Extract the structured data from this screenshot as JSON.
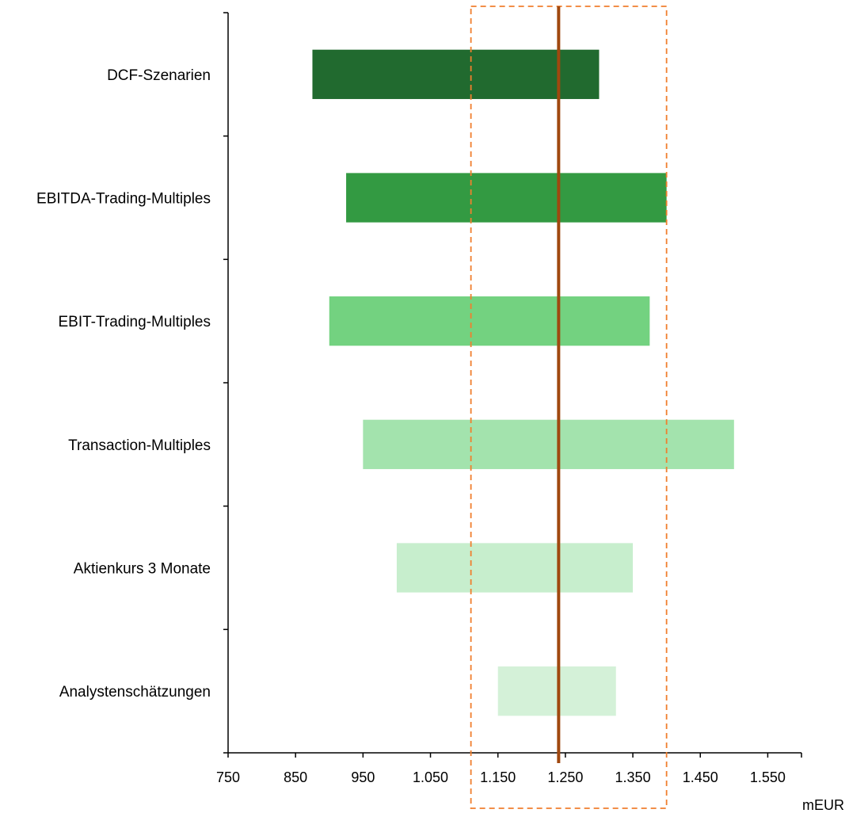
{
  "chart_data": {
    "type": "bar",
    "orientation": "horizontal-floating",
    "categories": [
      "DCF-Szenarien",
      "EBITDA-Trading-Multiples",
      "EBIT-Trading-Multiples",
      "Transaction-Multiples",
      "Aktienkurs 3 Monate",
      "Analystenschätzungen"
    ],
    "ranges": [
      {
        "low": 875,
        "high": 1300
      },
      {
        "low": 925,
        "high": 1400
      },
      {
        "low": 900,
        "high": 1375
      },
      {
        "low": 950,
        "high": 1500
      },
      {
        "low": 1000,
        "high": 1350
      },
      {
        "low": 1150,
        "high": 1325
      }
    ],
    "bar_colors": [
      "#216a2f",
      "#339a42",
      "#73d280",
      "#a3e3ad",
      "#c7eecd",
      "#d4f1d8"
    ],
    "x_ticks": [
      "750",
      "850",
      "950",
      "1.050",
      "1.150",
      "1.250",
      "1.350",
      "1.450",
      "1.550"
    ],
    "x_tick_values": [
      750,
      850,
      950,
      1050,
      1150,
      1250,
      1350,
      1450,
      1550
    ],
    "xlim": [
      750,
      1600
    ],
    "unit_label": "mEUR",
    "reference_line": {
      "value": 1240,
      "color": "#a0480f"
    },
    "highlight_range": {
      "low": 1110,
      "high": 1400,
      "color": "#f07f2e",
      "style": "dashed"
    },
    "grid": false
  }
}
